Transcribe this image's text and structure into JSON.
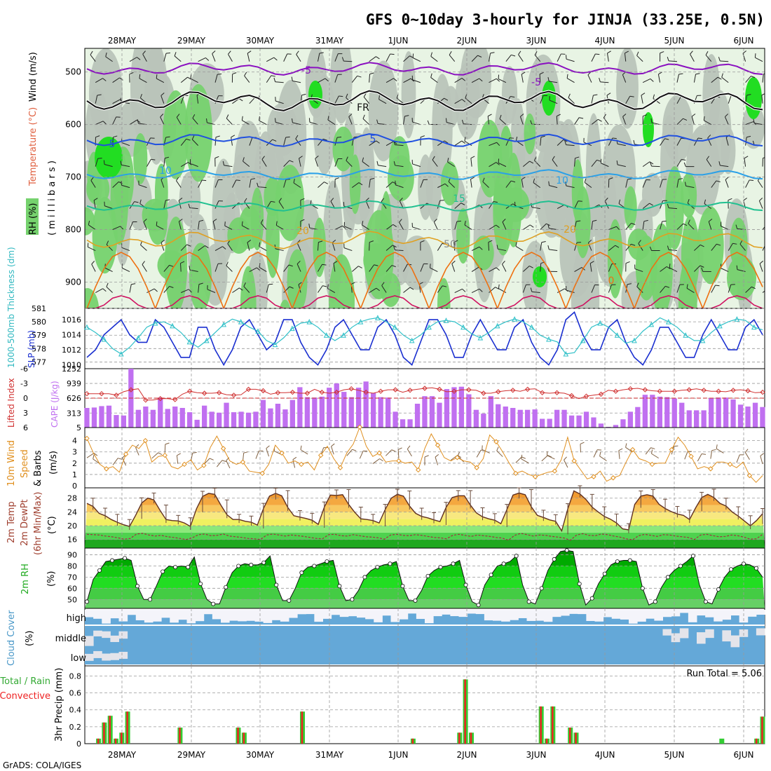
{
  "title": "GFS 0~10day 3-hourly for JINJA (33.25E, 0.5N)",
  "footer": "GrADS: COLA/IGES",
  "dates": [
    "28MAY",
    "29MAY",
    "30MAY",
    "31MAY",
    "1JUN",
    "2JUN",
    "3JUN",
    "4JUN",
    "5JUN",
    "6JUN"
  ],
  "colors": {
    "rh_light": "#e8f4e4",
    "rh_gray": "#b9c4b9",
    "rh_green": "#76d26e",
    "rh_bright": "#22dd22",
    "t_minus5": "#8a10c0",
    "t_fr": "#111111",
    "t5": "#2050e0",
    "t10": "#2aa0e8",
    "t15": "#20c090",
    "t20": "#e0a020",
    "t25": "#ee7010",
    "t30": "#d01060",
    "slp": "#1a2fd0",
    "thick": "#30c0c8",
    "li": "#d03030",
    "cape": "#c070f0",
    "wind": "#e09020",
    "barb": "#806040",
    "temp_fill": "#f2a030",
    "temp_line": "#603020",
    "dew": "#a03040",
    "rh2m": "#20aa20",
    "cloud": "#64a8d8",
    "precip_total": "#33cc33",
    "precip_conv": "#ee2222"
  },
  "panels": {
    "upper": {
      "ylabel_rh": "RH (%)",
      "ylabel_temp": "Temperature (°C)",
      "ylabel_wind": "Wind (m/s)",
      "ylabel_p": "( m i l l i b a r s )",
      "yticks": [
        "500",
        "600",
        "700",
        "800",
        "900"
      ],
      "contour_labels": [
        "-5",
        "-5",
        "FR",
        "5",
        "5",
        "10",
        "10",
        "15",
        "20",
        "20",
        "50",
        "0"
      ]
    },
    "slp": {
      "ylabel_thick": "1000-500mb Thickness (dm)",
      "ylabel_slp": "SLP (mb)",
      "left_ticks": [
        "581",
        "580",
        "579",
        "578",
        "577"
      ],
      "right_ticks": [
        "1016",
        "1014",
        "1012",
        "1010"
      ]
    },
    "cape": {
      "ylabel_li": "Lifted Index",
      "ylabel_cape": "CAPE (J/kg)",
      "left_ticks": [
        "-6",
        "-3",
        "0",
        "3",
        "6"
      ],
      "right_ticks": [
        "1252",
        "939",
        "626",
        "313",
        "5"
      ]
    },
    "wind10": {
      "ylabel_a": "10m Wind",
      "ylabel_b": "Speed",
      "ylabel_c": "& Barbs",
      "ylabel_u": "(m/s)",
      "ticks": [
        "4",
        "3",
        "2",
        "1",
        "0"
      ]
    },
    "temp": {
      "ylabel_a": "2m Temp",
      "ylabel_b": "2m DewPt",
      "ylabel_c": "(6hr Min/Max)",
      "ylabel_u": "(°C)",
      "ticks": [
        "28",
        "24",
        "20",
        "16"
      ]
    },
    "rh": {
      "ylabel": "2m RH",
      "unit": "(%)",
      "ticks": [
        "90",
        "80",
        "70",
        "60",
        "50"
      ]
    },
    "cloud": {
      "ylabel": "Cloud Cover",
      "unit": "(%)",
      "levels": [
        "high",
        "middle",
        "low"
      ]
    },
    "precip": {
      "ylabel_a": "Total / Rain",
      "ylabel_b": "Convective",
      "ylabel_c": "3hr Precip (mm)",
      "run_total": "Run Total = 5.06",
      "ticks": [
        "0.8",
        "0.6",
        "0.4",
        "0.2",
        "0"
      ]
    }
  },
  "chart_data": [
    {
      "type": "line",
      "name": "slp_thickness",
      "ylabel": "SLP (mb)",
      "slp": [
        1011,
        1012,
        1014,
        1015,
        1016,
        1014,
        1013,
        1013,
        1016,
        1015,
        1013,
        1011,
        1011,
        1015,
        1015,
        1012,
        1010,
        1012,
        1015,
        1016,
        1014,
        1012,
        1013,
        1016,
        1016,
        1013,
        1011,
        1010,
        1012,
        1015,
        1016,
        1014,
        1012,
        1012,
        1015,
        1016,
        1014,
        1011,
        1010,
        1013,
        1016,
        1016,
        1014,
        1011,
        1011,
        1014,
        1016,
        1014,
        1012,
        1012,
        1015,
        1016,
        1013,
        1011,
        1010,
        1012,
        1016,
        1017,
        1014,
        1012,
        1012,
        1015,
        1016,
        1013,
        1011,
        1010,
        1012,
        1015,
        1015,
        1013,
        1011,
        1011,
        1014,
        1016,
        1014,
        1012,
        1012,
        1015,
        1016,
        1014
      ],
      "thickness_dm": [
        579.6,
        579.2,
        578.7,
        578.0,
        577.6,
        578.1,
        578.8,
        579.6,
        579.9,
        580.0,
        579.7,
        579.2,
        578.5,
        578.1,
        578.6,
        579.2,
        579.8,
        580.2,
        580.0,
        579.6,
        579.3,
        578.6,
        578.3,
        578.8,
        579.5,
        579.9,
        580.0,
        579.6,
        579.0,
        578.6,
        579.0,
        579.6,
        580.0,
        580.2,
        580.3,
        580.0,
        579.6,
        579.0,
        578.6,
        579.0,
        579.6,
        580.0,
        580.1,
        580.0,
        579.6,
        579.1,
        578.8,
        579.2,
        579.7,
        580.0,
        580.2,
        580.0,
        579.6,
        579.0,
        578.7,
        578.5,
        577.6,
        577.7,
        578.6,
        579.6,
        579.9,
        579.6,
        579.0,
        578.4,
        578.6,
        579.3,
        579.8,
        580.3,
        580.0,
        579.6,
        579.0,
        578.6,
        578.6,
        579.2,
        579.7,
        580.0,
        580.2,
        580.1,
        579.6,
        579.4
      ]
    },
    {
      "type": "bar",
      "name": "cape_lifted_index",
      "ylabel": "CAPE (J/kg)",
      "cape": [
        420,
        430,
        460,
        470,
        270,
        260,
        1252,
        380,
        450,
        380,
        640,
        400,
        450,
        420,
        330,
        170,
        470,
        340,
        320,
        530,
        330,
        340,
        320,
        340,
        590,
        410,
        510,
        390,
        590,
        860,
        650,
        640,
        660,
        850,
        940,
        760,
        650,
        850,
        980,
        740,
        650,
        640,
        340,
        180,
        180,
        510,
        670,
        670,
        530,
        820,
        860,
        870,
        710,
        380,
        300,
        670,
        500,
        450,
        420,
        380,
        380,
        390,
        190,
        190,
        380,
        380,
        260,
        260,
        340,
        220,
        90,
        20,
        60,
        180,
        340,
        440,
        700,
        700,
        660,
        650,
        620,
        530,
        370,
        370,
        370,
        630,
        640,
        640,
        600,
        490,
        450,
        530,
        440
      ],
      "lifted_index": [
        -0.9,
        -0.9,
        -0.9,
        -0.9,
        -0.6,
        -1.3,
        -1.7,
        -1.9,
        0.4,
        0.4,
        0.1,
        0.1,
        0.3,
        -0.8,
        -1.4,
        -1.1,
        -1.0,
        -1.0,
        -1.1,
        -0.7,
        -0.6,
        -0.7,
        -1.8,
        -1.8,
        -1.5,
        -0.8,
        -1.1,
        -1.1,
        -1.2,
        -1.0,
        -1.0,
        -1.8,
        -1.2,
        -1.0,
        -1.2,
        -1.7,
        -1.9,
        -1.6,
        -1.2,
        -1.0,
        -1.4,
        -1.7,
        -1.7,
        -1.2,
        -1.6,
        -1.8,
        -2.0,
        -2.1,
        -1.8,
        -1.3,
        -1.4,
        -1.7,
        -1.7,
        -1.6,
        -1.0,
        -1.0,
        -1.3,
        -1.5,
        -1.6,
        -1.4,
        -1.8,
        -1.9,
        -1.1,
        -1.0,
        -1.1,
        -1.0,
        -0.5,
        0.1,
        -0.4,
        -0.6,
        -0.8,
        -1.6,
        -1.4,
        -1.7,
        -1.9,
        -2.0,
        -1.7,
        -1.5,
        -1.4,
        -1.4,
        -1.4,
        -1.6,
        -1.7,
        -1.9,
        -1.6,
        -1.4,
        -1.4,
        -1.3,
        -1.6,
        -1.7,
        -1.5,
        -1.1,
        -1.2
      ]
    },
    {
      "type": "line",
      "name": "wind10m",
      "ylabel": "(m/s)",
      "values": [
        4.2,
        2.9,
        1.9,
        1.5,
        1.7,
        1.2,
        2.8,
        3.6,
        3.3,
        4.0,
        2.1,
        2.6,
        2.7,
        1.7,
        1.5,
        1.9,
        2.3,
        1.4,
        1.8,
        3.4,
        4.4,
        3.3,
        2.2,
        1.9,
        2.1,
        1.3,
        1.2,
        1.1,
        1.9,
        3.6,
        2.9,
        2.0,
        2.2,
        1.9,
        2.1,
        1.4,
        2.7,
        3.5,
        2.4,
        1.6,
        2.9,
        3.7,
        5.2,
        3.5,
        2.6,
        2.9,
        2.1,
        2.2,
        2.2,
        2.0,
        2.1,
        1.4,
        3.3,
        4.6,
        3.6,
        2.5,
        2.2,
        2.5,
        2.2,
        2.1,
        1.6,
        2.4,
        4.5,
        3.9,
        3.0,
        2.0,
        1.1,
        1.3,
        1.0,
        0.8,
        1.0,
        1.2,
        1.3,
        2.3,
        4.3,
        2.2,
        1.4,
        0.6,
        0.8,
        1.3,
        0.4,
        0.7,
        0.9,
        2.1,
        3.2,
        2.4,
        2.2,
        1.9,
        2.0,
        2.0,
        3.2,
        4.3,
        3.6,
        2.6,
        1.5,
        1.7,
        1.5,
        2.1,
        2.1,
        1.9,
        1.6,
        2.1,
        0.9,
        0.3,
        0.9
      ]
    },
    {
      "type": "area",
      "name": "temp_2m",
      "ylabel": "(°C)",
      "temp": [
        26.5,
        25.6,
        23.6,
        22.9,
        21.8,
        21.0,
        20.3,
        19.8,
        23.0,
        26.6,
        28.0,
        27.5,
        24.5,
        21.8,
        21.5,
        21.4,
        20.8,
        19.8,
        24.9,
        28.5,
        29.4,
        29.1,
        26.0,
        23.2,
        21.8,
        21.8,
        21.3,
        21.0,
        20.2,
        25.0,
        28.6,
        29.4,
        28.7,
        25.3,
        22.9,
        22.5,
        22.1,
        21.6,
        20.4,
        25.4,
        28.9,
        28.8,
        29.0,
        26.2,
        23.9,
        22.0,
        21.8,
        21.5,
        20.8,
        24.7,
        28.0,
        29.1,
        28.6,
        25.7,
        23.6,
        22.7,
        22.3,
        21.7,
        21.2,
        25.3,
        28.2,
        28.7,
        28.7,
        26.0,
        23.7,
        22.6,
        22.0,
        21.6,
        20.6,
        24.7,
        28.9,
        29.5,
        29.0,
        25.5,
        23.0,
        22.4,
        21.7,
        21.3,
        18.5,
        24.9,
        30.1,
        29.2,
        27.6,
        25.4,
        24.0,
        22.7,
        21.9,
        20.8,
        19.1,
        18.8,
        26.2,
        28.6,
        29.0,
        28.6,
        26.2,
        25.0,
        24.1,
        23.4,
        23.0,
        21.8,
        25.2,
        28.2,
        29.1,
        28.2,
        26.5,
        25.7,
        24.0,
        22.8,
        21.4,
        20.0,
        21.5,
        23.5
      ],
      "dewpoint": [
        17.5,
        17.4,
        17.3,
        17.0,
        16.8,
        16.5,
        16.1,
        16.3,
        17.6,
        17.8,
        17.3,
        17.0,
        17.2,
        16.8,
        16.6,
        16.3,
        16.0,
        16.5,
        17.4,
        17.6,
        17.1,
        17.2,
        17.6,
        17.0,
        16.8,
        16.6,
        16.3,
        16.2,
        16.0,
        17.3,
        17.6,
        17.3,
        17.0,
        17.3,
        17.1,
        16.9,
        16.6,
        16.3,
        16.2,
        17.4,
        17.5,
        17.1,
        17.0,
        17.4,
        17.1,
        16.8,
        16.7,
        16.5,
        16.1,
        17.3,
        17.5,
        17.2,
        17.1,
        17.4,
        17.2,
        16.9,
        16.6,
        16.5,
        16.2,
        17.2,
        17.5,
        17.2,
        16.9,
        17.3,
        17.1,
        16.9,
        16.6,
        16.4,
        15.8,
        17.2,
        17.8,
        17.4,
        17.0,
        17.3,
        17.2,
        16.9,
        16.7,
        16.4,
        15.8,
        17.3,
        17.7,
        17.2,
        17.1,
        17.6,
        17.4,
        17.0,
        16.7,
        16.2,
        15.9,
        17.1,
        17.5,
        17.2,
        16.9,
        17.4,
        17.3,
        17.0,
        16.8,
        16.6,
        16.0,
        17.3,
        17.5,
        17.1,
        16.8,
        16.9,
        17.3,
        17.1,
        16.7,
        16.1,
        16.2,
        17.5
      ]
    },
    {
      "type": "area",
      "name": "rh_2m",
      "ylabel": "(%)",
      "values": [
        48,
        68,
        76,
        84,
        85,
        86,
        87,
        85,
        62,
        50,
        50,
        62,
        75,
        80,
        79,
        80,
        79,
        88,
        64,
        50,
        46,
        46,
        61,
        74,
        80,
        82,
        81,
        81,
        83,
        89,
        63,
        49,
        49,
        60,
        74,
        79,
        80,
        82,
        84,
        85,
        62,
        49,
        50,
        58,
        70,
        76,
        79,
        81,
        82,
        84,
        62,
        49,
        49,
        58,
        71,
        76,
        79,
        80,
        82,
        85,
        63,
        48,
        45,
        63,
        72,
        80,
        82,
        84,
        89,
        63,
        48,
        46,
        60,
        76,
        86,
        93,
        94,
        93,
        64,
        45,
        51,
        64,
        73,
        81,
        84,
        85,
        85,
        84,
        60,
        45,
        48,
        61,
        70,
        76,
        80,
        84,
        89,
        63,
        48,
        46,
        59,
        70,
        77,
        80,
        82,
        81,
        78,
        70
      ]
    },
    {
      "type": "bar",
      "name": "precip_3hr",
      "ylabel": "3hr Precip (mm)",
      "total": [
        0,
        0,
        0.06,
        0.25,
        0.33,
        0.06,
        0.13,
        0.38,
        0,
        0,
        0,
        0,
        0,
        0,
        0,
        0,
        0.19,
        0,
        0,
        0,
        0,
        0,
        0,
        0,
        0,
        0,
        0.19,
        0.13,
        0,
        0,
        0,
        0,
        0,
        0,
        0,
        0,
        0,
        0.38,
        0,
        0,
        0,
        0,
        0,
        0,
        0,
        0,
        0,
        0,
        0,
        0,
        0,
        0,
        0,
        0,
        0,
        0,
        0.06,
        0,
        0,
        0,
        0,
        0,
        0,
        0,
        0.13,
        0.76,
        0.13,
        0,
        0,
        0,
        0,
        0,
        0,
        0,
        0,
        0,
        0,
        0,
        0.44,
        0.06,
        0.44,
        0,
        0,
        0.19,
        0.13,
        0,
        0,
        0,
        0,
        0,
        0,
        0,
        0,
        0,
        0,
        0,
        0,
        0,
        0,
        0,
        0,
        0,
        0,
        0,
        0,
        0,
        0,
        0,
        0,
        0.06,
        0,
        0,
        0,
        0,
        0,
        0.06,
        0.32
      ],
      "convective": [
        0,
        0,
        0.06,
        0.25,
        0.33,
        0.06,
        0.13,
        0.38,
        0,
        0,
        0,
        0,
        0,
        0,
        0,
        0,
        0.19,
        0,
        0,
        0,
        0,
        0,
        0,
        0,
        0,
        0,
        0.19,
        0.13,
        0,
        0,
        0,
        0,
        0,
        0,
        0,
        0,
        0,
        0.38,
        0,
        0,
        0,
        0,
        0,
        0,
        0,
        0,
        0,
        0,
        0,
        0,
        0,
        0,
        0,
        0,
        0,
        0,
        0.06,
        0,
        0,
        0,
        0,
        0,
        0,
        0,
        0.13,
        0.76,
        0.13,
        0,
        0,
        0,
        0,
        0,
        0,
        0,
        0,
        0,
        0,
        0,
        0.44,
        0.06,
        0.44,
        0,
        0,
        0.19,
        0.13,
        0,
        0,
        0,
        0,
        0,
        0,
        0,
        0,
        0,
        0,
        0,
        0,
        0,
        0,
        0,
        0,
        0,
        0,
        0,
        0,
        0,
        0,
        0,
        0,
        0,
        0,
        0,
        0,
        0,
        0,
        0.06,
        0.32
      ],
      "ylim": [
        0,
        0.9
      ]
    }
  ]
}
